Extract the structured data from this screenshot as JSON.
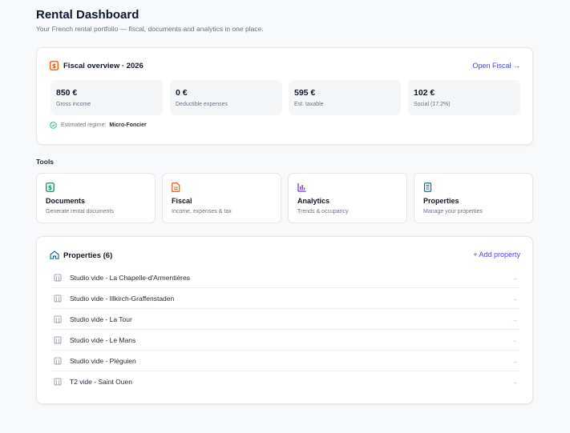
{
  "header": {
    "title": "Rental Dashboard",
    "subtitle": "Your French rental portfolio — fiscal, documents and analytics in one place."
  },
  "fiscal": {
    "title": "Fiscal overview · 2026",
    "link": "Open Fiscal →",
    "stats": [
      {
        "value": "850 €",
        "label": "Gross income"
      },
      {
        "value": "0 €",
        "label": "Deductible expenses"
      },
      {
        "value": "595 €",
        "label": "Est. taxable"
      },
      {
        "value": "102 €",
        "label": "Social (17.2%)"
      }
    ],
    "regime_label": "Estimated regime:",
    "regime_value": "Micro-Foncier"
  },
  "tools": {
    "label": "Tools",
    "items": [
      {
        "name": "Documents",
        "desc": "Generate rental documents",
        "icon": "document-dollar-icon",
        "color": "#059669"
      },
      {
        "name": "Fiscal",
        "desc": "Income, expenses & tax",
        "icon": "document-text-icon",
        "color": "#ea580c"
      },
      {
        "name": "Analytics",
        "desc": "Trends & occupancy",
        "icon": "bar-chart-icon",
        "color": "#6d28d9"
      },
      {
        "name": "Properties",
        "desc": "Manage your properties",
        "icon": "building-icon",
        "color": "#0e7490"
      }
    ]
  },
  "properties": {
    "title": "Properties (6)",
    "add_label": "+ Add property",
    "items": [
      "Studio vide - La Chapelle-d'Armentières",
      "Studio vide - Illkirch-Graffenstaden",
      "Studio vide - La Tour",
      "Studio vide - Le Mans",
      "Studio vide - Pléguien",
      "T2 vide - Saint Ouen"
    ]
  },
  "colors": {
    "accent": "#4f46e5",
    "fiscal_icon": "#ea580c",
    "home_icon": "#0e7490",
    "success": "#10b981"
  }
}
